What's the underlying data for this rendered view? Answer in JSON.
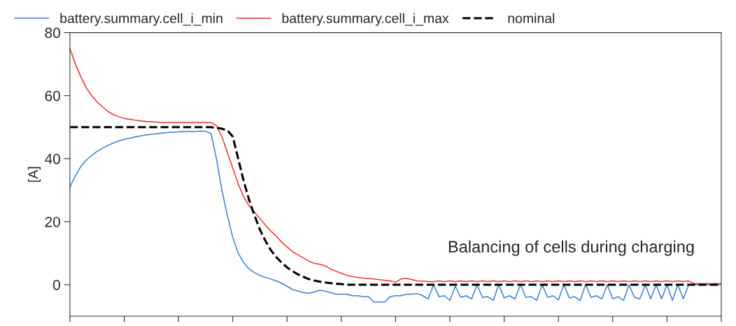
{
  "chart_data": {
    "type": "line",
    "ylabel": "[A]",
    "ylim": [
      -10,
      80
    ],
    "yticks": [
      0,
      20,
      40,
      60,
      80
    ],
    "grid": false,
    "legend": "top",
    "marker": "none",
    "categories": [
      null,
      null,
      null,
      null,
      null,
      null,
      null,
      null,
      null,
      null,
      null,
      null,
      null,
      null,
      null,
      null,
      null,
      null,
      null,
      null,
      null,
      null,
      null,
      null,
      null,
      null,
      null,
      null,
      null,
      null,
      null,
      null,
      null,
      null,
      null,
      null,
      null,
      null,
      null,
      null,
      null,
      null,
      null,
      null,
      null,
      null,
      null,
      null,
      null,
      null,
      null,
      null,
      null,
      null,
      null,
      null,
      null,
      null,
      null,
      null,
      null,
      null,
      null,
      null,
      null,
      null,
      null,
      null,
      null,
      null,
      null,
      null,
      null,
      null,
      null,
      null,
      null,
      null,
      null,
      null,
      null,
      null,
      null,
      null,
      null,
      null,
      null,
      null,
      null,
      null,
      null,
      null,
      null,
      null,
      null,
      null,
      null,
      null,
      null,
      null,
      null,
      null,
      null,
      null,
      null,
      null,
      null,
      null,
      null,
      null,
      null,
      null,
      null,
      null,
      null,
      null,
      null,
      null,
      null,
      null,
      null
    ],
    "series": [
      {
        "name": "battery.summary.cell_i_min",
        "color": "#3a7fd5",
        "line_style": "solid",
        "values": [
          31,
          34.5,
          37.5,
          39.5,
          41,
          42.3,
          43.3,
          44.2,
          45,
          45.6,
          46.1,
          46.5,
          46.9,
          47.2,
          47.5,
          47.7,
          47.9,
          48.1,
          48.3,
          48.4,
          48.5,
          48.6,
          48.6,
          48.6,
          48.8,
          48.7,
          48,
          40,
          30,
          22,
          15,
          10,
          7,
          5,
          3.8,
          3,
          2.3,
          1.8,
          1.2,
          0.5,
          -0.5,
          -1.5,
          -2,
          -2.5,
          -2.7,
          -2.3,
          -1.8,
          -2,
          -2.5,
          -3,
          -3,
          -3,
          -3.5,
          -3.5,
          -3.8,
          -3.8,
          -5.5,
          -5.5,
          -5.5,
          -3.8,
          -3.5,
          -3.5,
          -3,
          -3,
          -2.8,
          -3.5,
          -4.5,
          0,
          -3.8,
          -3.5,
          -5,
          -0.5,
          -4,
          -3.5,
          -4.5,
          0,
          -4,
          -3.8,
          -5,
          0,
          -4.2,
          -3.5,
          -4.5,
          0,
          -4,
          -3.8,
          -5,
          0,
          -4,
          -3.5,
          -4.8,
          0,
          -4.2,
          -3.8,
          -5,
          0,
          -4,
          -3.5,
          -4.5,
          0,
          -4.5,
          -3.8,
          -5,
          0,
          -4,
          -4.5,
          0,
          -4.5,
          0,
          -4.5,
          0,
          -5,
          0,
          -4.5,
          0,
          0,
          0,
          0,
          0,
          0,
          0
        ]
      },
      {
        "name": "battery.summary.cell_i_max",
        "color": "#ee3030",
        "line_style": "solid",
        "values": [
          75,
          70,
          66,
          62.5,
          60,
          58,
          56.5,
          55,
          54,
          53.3,
          52.8,
          52.5,
          52.2,
          52,
          51.8,
          51.7,
          51.6,
          51.5,
          51.5,
          51.5,
          51.5,
          51.5,
          51.5,
          51.5,
          51.5,
          51.5,
          51.4,
          50.5,
          47,
          42,
          37,
          32,
          28,
          25,
          23,
          21,
          19,
          17,
          15.5,
          13.5,
          12,
          10.5,
          9.5,
          8.5,
          7.5,
          6.8,
          6.5,
          6,
          5,
          4.3,
          3.6,
          3,
          2.6,
          2.3,
          2.1,
          2,
          1.8,
          1.6,
          1.4,
          1.2,
          0.8,
          1.8,
          2,
          1.6,
          1.2,
          1.1,
          1,
          1,
          1.2,
          1,
          1.2,
          1,
          1.2,
          1,
          1.2,
          1,
          1.2,
          1,
          1.2,
          1,
          1.2,
          1,
          1.2,
          1,
          1.2,
          1,
          1.2,
          1,
          1.2,
          1,
          1.2,
          1,
          1.2,
          1,
          1.2,
          1,
          1.2,
          1,
          1.2,
          1,
          1.2,
          1,
          1.2,
          1,
          1.2,
          1,
          1.2,
          1,
          1.2,
          1,
          1.2,
          1,
          1.2,
          1,
          1.2,
          0.3,
          0.3,
          0.3,
          0.3,
          0.3,
          0.3
        ]
      },
      {
        "name": "nominal",
        "color": "#000000",
        "line_style": "dashed",
        "values": [
          50,
          50,
          50,
          50,
          50,
          50,
          50,
          50,
          50,
          50,
          50,
          50,
          50,
          50,
          50,
          50,
          50,
          50,
          50,
          50,
          50,
          50,
          50,
          50,
          50,
          50,
          50,
          49.8,
          49.5,
          49,
          47,
          40,
          33,
          27,
          22,
          17.5,
          14,
          11,
          8.8,
          7,
          5.5,
          4.3,
          3.3,
          2.5,
          1.8,
          1.3,
          1,
          0.7,
          0.5,
          0.3,
          0.2,
          0,
          0,
          0,
          0,
          0,
          0,
          0,
          0,
          0,
          0,
          0,
          0,
          0,
          0,
          0,
          0,
          0,
          0,
          0,
          0,
          0,
          0,
          0,
          0,
          0,
          0,
          0,
          0,
          0,
          0,
          0,
          0,
          0,
          0,
          0,
          0,
          0,
          0,
          0,
          0,
          0,
          0,
          0,
          0,
          0,
          0,
          0,
          0,
          0,
          0,
          0,
          0,
          0,
          0,
          0,
          0,
          0,
          0,
          0,
          0,
          0,
          0,
          0,
          0,
          0,
          0,
          0,
          0,
          0,
          0
        ]
      }
    ],
    "annotations": [
      "Balancing of cells during charging"
    ]
  }
}
